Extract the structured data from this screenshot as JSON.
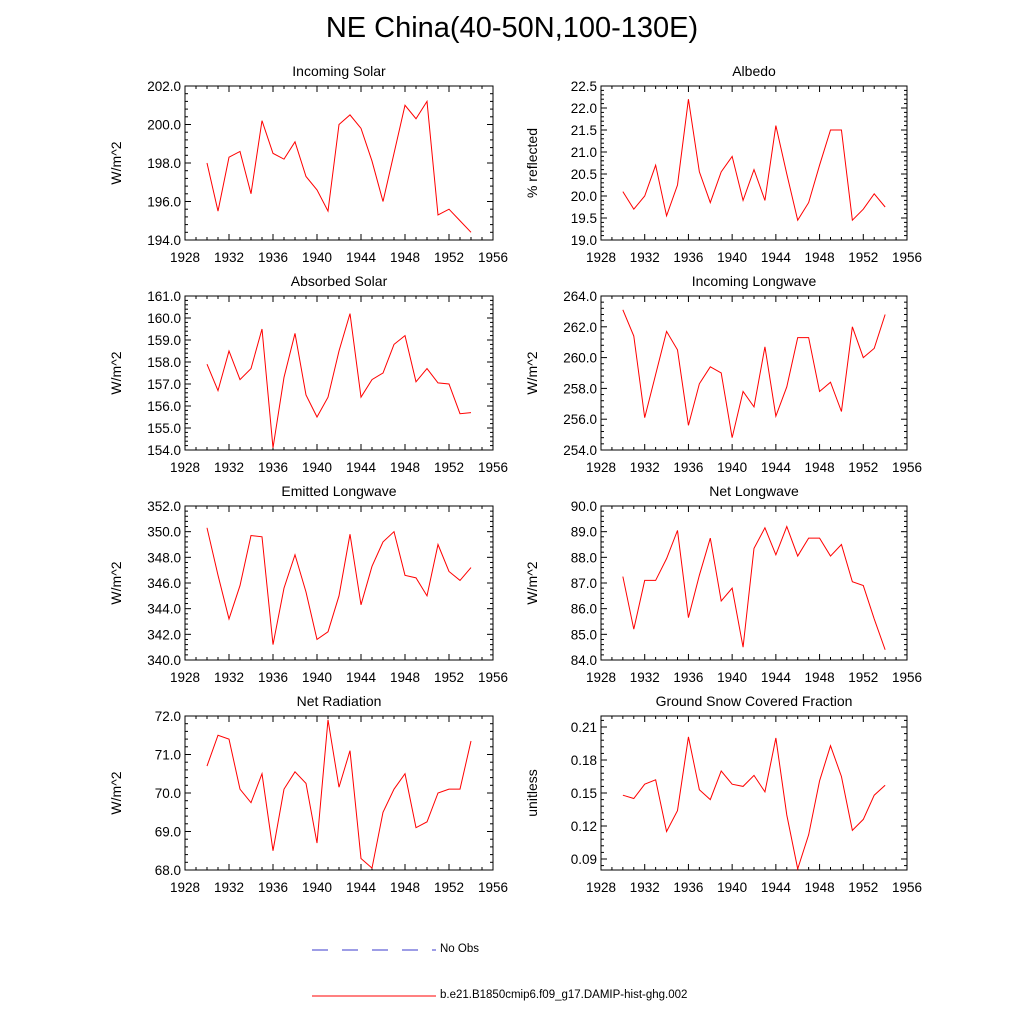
{
  "figure": {
    "title": "NE China(40-50N,100-130E)"
  },
  "legend": {
    "entries": [
      {
        "label": "No Obs",
        "color": "#3b3bcc",
        "style": "dashed"
      },
      {
        "label": "b.e21.B1850cmip6.f09_g17.DAMIP-hist-ghg.002",
        "color": "#ff0000",
        "style": "solid"
      }
    ]
  },
  "chart_data": [
    {
      "type": "line",
      "title": "Incoming Solar",
      "ylabel": "W/m^2",
      "xlabel": "",
      "xlim": [
        1928,
        1956
      ],
      "ylim": [
        194.0,
        202.0
      ],
      "xticks": [
        "1928",
        "1932",
        "1936",
        "1940",
        "1944",
        "1948",
        "1952",
        "1956"
      ],
      "yticks": [
        "194.0",
        "196.0",
        "198.0",
        "200.0",
        "202.0"
      ],
      "x": [
        1930,
        1931,
        1932,
        1933,
        1934,
        1935,
        1936,
        1937,
        1938,
        1939,
        1940,
        1941,
        1942,
        1943,
        1944,
        1945,
        1946,
        1947,
        1948,
        1949,
        1950,
        1951,
        1952,
        1953,
        1954
      ],
      "series": [
        {
          "name": "b.e21.B1850cmip6.f09_g17.DAMIP-hist-ghg.002",
          "color": "#ff0000",
          "values": [
            198.0,
            195.5,
            198.3,
            198.6,
            196.4,
            200.2,
            198.5,
            198.2,
            199.1,
            197.3,
            196.6,
            195.5,
            200.0,
            200.5,
            199.8,
            198.1,
            196.0,
            198.5,
            201.0,
            200.3,
            201.2,
            195.3,
            195.6,
            195.0,
            194.4
          ]
        }
      ]
    },
    {
      "type": "line",
      "title": "Albedo",
      "ylabel": "% reflected",
      "xlabel": "",
      "xlim": [
        1928,
        1956
      ],
      "ylim": [
        19.0,
        22.5
      ],
      "xticks": [
        "1928",
        "1932",
        "1936",
        "1940",
        "1944",
        "1948",
        "1952",
        "1956"
      ],
      "yticks": [
        "19.0",
        "19.5",
        "20.0",
        "20.5",
        "21.0",
        "21.5",
        "22.0",
        "22.5"
      ],
      "x": [
        1930,
        1931,
        1932,
        1933,
        1934,
        1935,
        1936,
        1937,
        1938,
        1939,
        1940,
        1941,
        1942,
        1943,
        1944,
        1945,
        1946,
        1947,
        1948,
        1949,
        1950,
        1951,
        1952,
        1953,
        1954
      ],
      "series": [
        {
          "name": "b.e21.B1850cmip6.f09_g17.DAMIP-hist-ghg.002",
          "color": "#ff0000",
          "values": [
            20.1,
            19.7,
            20.0,
            20.7,
            19.55,
            20.25,
            22.2,
            20.55,
            19.85,
            20.55,
            20.9,
            19.9,
            20.6,
            19.9,
            21.6,
            20.5,
            19.45,
            19.85,
            20.7,
            21.5,
            21.5,
            19.45,
            19.7,
            20.05,
            19.75
          ]
        }
      ]
    },
    {
      "type": "line",
      "title": "Absorbed Solar",
      "ylabel": "W/m^2",
      "xlabel": "",
      "xlim": [
        1928,
        1956
      ],
      "ylim": [
        154.0,
        161.0
      ],
      "xticks": [
        "1928",
        "1932",
        "1936",
        "1940",
        "1944",
        "1948",
        "1952",
        "1956"
      ],
      "yticks": [
        "154.0",
        "155.0",
        "156.0",
        "157.0",
        "158.0",
        "159.0",
        "160.0",
        "161.0"
      ],
      "x": [
        1930,
        1931,
        1932,
        1933,
        1934,
        1935,
        1936,
        1937,
        1938,
        1939,
        1940,
        1941,
        1942,
        1943,
        1944,
        1945,
        1946,
        1947,
        1948,
        1949,
        1950,
        1951,
        1952,
        1953,
        1954
      ],
      "series": [
        {
          "name": "b.e21.B1850cmip6.f09_g17.DAMIP-hist-ghg.002",
          "color": "#ff0000",
          "values": [
            157.9,
            156.7,
            158.5,
            157.2,
            157.7,
            159.5,
            154.1,
            157.3,
            159.3,
            156.5,
            155.5,
            156.4,
            158.5,
            160.2,
            156.4,
            157.2,
            157.5,
            158.8,
            159.2,
            157.1,
            157.7,
            157.05,
            157.0,
            155.65,
            155.7
          ]
        }
      ]
    },
    {
      "type": "line",
      "title": "Incoming Longwave",
      "ylabel": "W/m^2",
      "xlabel": "",
      "xlim": [
        1928,
        1956
      ],
      "ylim": [
        254.0,
        264.0
      ],
      "xticks": [
        "1928",
        "1932",
        "1936",
        "1940",
        "1944",
        "1948",
        "1952",
        "1956"
      ],
      "yticks": [
        "254.0",
        "256.0",
        "258.0",
        "260.0",
        "262.0",
        "264.0"
      ],
      "x": [
        1930,
        1931,
        1932,
        1933,
        1934,
        1935,
        1936,
        1937,
        1938,
        1939,
        1940,
        1941,
        1942,
        1943,
        1944,
        1945,
        1946,
        1947,
        1948,
        1949,
        1950,
        1951,
        1952,
        1953,
        1954
      ],
      "series": [
        {
          "name": "b.e21.B1850cmip6.f09_g17.DAMIP-hist-ghg.002",
          "color": "#ff0000",
          "values": [
            263.1,
            261.4,
            256.1,
            258.9,
            261.7,
            260.5,
            255.6,
            258.3,
            259.4,
            259.0,
            254.8,
            257.8,
            256.8,
            260.7,
            256.2,
            258.1,
            261.3,
            261.3,
            257.8,
            258.4,
            256.5,
            262.0,
            260.0,
            260.6,
            262.8
          ]
        }
      ]
    },
    {
      "type": "line",
      "title": "Emitted Longwave",
      "ylabel": "W/m^2",
      "xlabel": "",
      "xlim": [
        1928,
        1956
      ],
      "ylim": [
        340.0,
        352.0
      ],
      "xticks": [
        "1928",
        "1932",
        "1936",
        "1940",
        "1944",
        "1948",
        "1952",
        "1956"
      ],
      "yticks": [
        "340.0",
        "342.0",
        "344.0",
        "346.0",
        "348.0",
        "350.0",
        "352.0"
      ],
      "x": [
        1930,
        1931,
        1932,
        1933,
        1934,
        1935,
        1936,
        1937,
        1938,
        1939,
        1940,
        1941,
        1942,
        1943,
        1944,
        1945,
        1946,
        1947,
        1948,
        1949,
        1950,
        1951,
        1952,
        1953,
        1954
      ],
      "series": [
        {
          "name": "b.e21.B1850cmip6.f09_g17.DAMIP-hist-ghg.002",
          "color": "#ff0000",
          "values": [
            350.3,
            346.6,
            343.2,
            345.8,
            349.7,
            349.6,
            341.2,
            345.6,
            348.2,
            345.3,
            341.6,
            342.2,
            345.0,
            349.8,
            344.3,
            347.3,
            349.2,
            350.0,
            346.6,
            346.4,
            345.0,
            349.0,
            346.9,
            346.2,
            347.2
          ]
        }
      ]
    },
    {
      "type": "line",
      "title": "Net Longwave",
      "ylabel": "W/m^2",
      "xlabel": "",
      "xlim": [
        1928,
        1956
      ],
      "ylim": [
        84.0,
        90.0
      ],
      "xticks": [
        "1928",
        "1932",
        "1936",
        "1940",
        "1944",
        "1948",
        "1952",
        "1956"
      ],
      "yticks": [
        "84.0",
        "85.0",
        "86.0",
        "87.0",
        "88.0",
        "89.0",
        "90.0"
      ],
      "x": [
        1930,
        1931,
        1932,
        1933,
        1934,
        1935,
        1936,
        1937,
        1938,
        1939,
        1940,
        1941,
        1942,
        1943,
        1944,
        1945,
        1946,
        1947,
        1948,
        1949,
        1950,
        1951,
        1952,
        1953,
        1954
      ],
      "series": [
        {
          "name": "b.e21.B1850cmip6.f09_g17.DAMIP-hist-ghg.002",
          "color": "#ff0000",
          "values": [
            87.25,
            85.2,
            87.1,
            87.1,
            87.95,
            89.05,
            85.65,
            87.3,
            88.75,
            86.3,
            86.8,
            84.5,
            88.35,
            89.15,
            88.1,
            89.2,
            88.05,
            88.75,
            88.75,
            88.05,
            88.5,
            87.05,
            86.9,
            85.6,
            84.4
          ]
        }
      ]
    },
    {
      "type": "line",
      "title": "Net Radiation",
      "ylabel": "W/m^2",
      "xlabel": "",
      "xlim": [
        1928,
        1956
      ],
      "ylim": [
        68.0,
        72.0
      ],
      "xticks": [
        "1928",
        "1932",
        "1936",
        "1940",
        "1944",
        "1948",
        "1952",
        "1956"
      ],
      "yticks": [
        "68.0",
        "69.0",
        "70.0",
        "71.0",
        "72.0"
      ],
      "x": [
        1930,
        1931,
        1932,
        1933,
        1934,
        1935,
        1936,
        1937,
        1938,
        1939,
        1940,
        1941,
        1942,
        1943,
        1944,
        1945,
        1946,
        1947,
        1948,
        1949,
        1950,
        1951,
        1952,
        1953,
        1954
      ],
      "series": [
        {
          "name": "b.e21.B1850cmip6.f09_g17.DAMIP-hist-ghg.002",
          "color": "#ff0000",
          "values": [
            70.7,
            71.5,
            71.4,
            70.1,
            69.75,
            70.5,
            68.5,
            70.1,
            70.55,
            70.25,
            68.7,
            71.9,
            70.15,
            71.1,
            68.3,
            68.05,
            69.5,
            70.1,
            70.5,
            69.1,
            69.25,
            70.0,
            70.1,
            70.1,
            71.35
          ]
        }
      ]
    },
    {
      "type": "line",
      "title": "Ground Snow Covered Fraction",
      "ylabel": "unitless",
      "xlabel": "",
      "xlim": [
        1928,
        1956
      ],
      "ylim": [
        0.08,
        0.22
      ],
      "xticks": [
        "1928",
        "1932",
        "1936",
        "1940",
        "1944",
        "1948",
        "1952",
        "1956"
      ],
      "yticks": [
        "0.09",
        "0.12",
        "0.15",
        "0.18",
        "0.21"
      ],
      "ytick_values": [
        0.09,
        0.12,
        0.15,
        0.18,
        0.21
      ],
      "x": [
        1930,
        1931,
        1932,
        1933,
        1934,
        1935,
        1936,
        1937,
        1938,
        1939,
        1940,
        1941,
        1942,
        1943,
        1944,
        1945,
        1946,
        1947,
        1948,
        1949,
        1950,
        1951,
        1952,
        1953,
        1954
      ],
      "series": [
        {
          "name": "b.e21.B1850cmip6.f09_g17.DAMIP-hist-ghg.002",
          "color": "#ff0000",
          "values": [
            0.148,
            0.145,
            0.158,
            0.162,
            0.115,
            0.134,
            0.201,
            0.153,
            0.144,
            0.17,
            0.158,
            0.156,
            0.166,
            0.151,
            0.2,
            0.13,
            0.081,
            0.112,
            0.161,
            0.193,
            0.165,
            0.116,
            0.126,
            0.148,
            0.157
          ]
        }
      ]
    }
  ]
}
